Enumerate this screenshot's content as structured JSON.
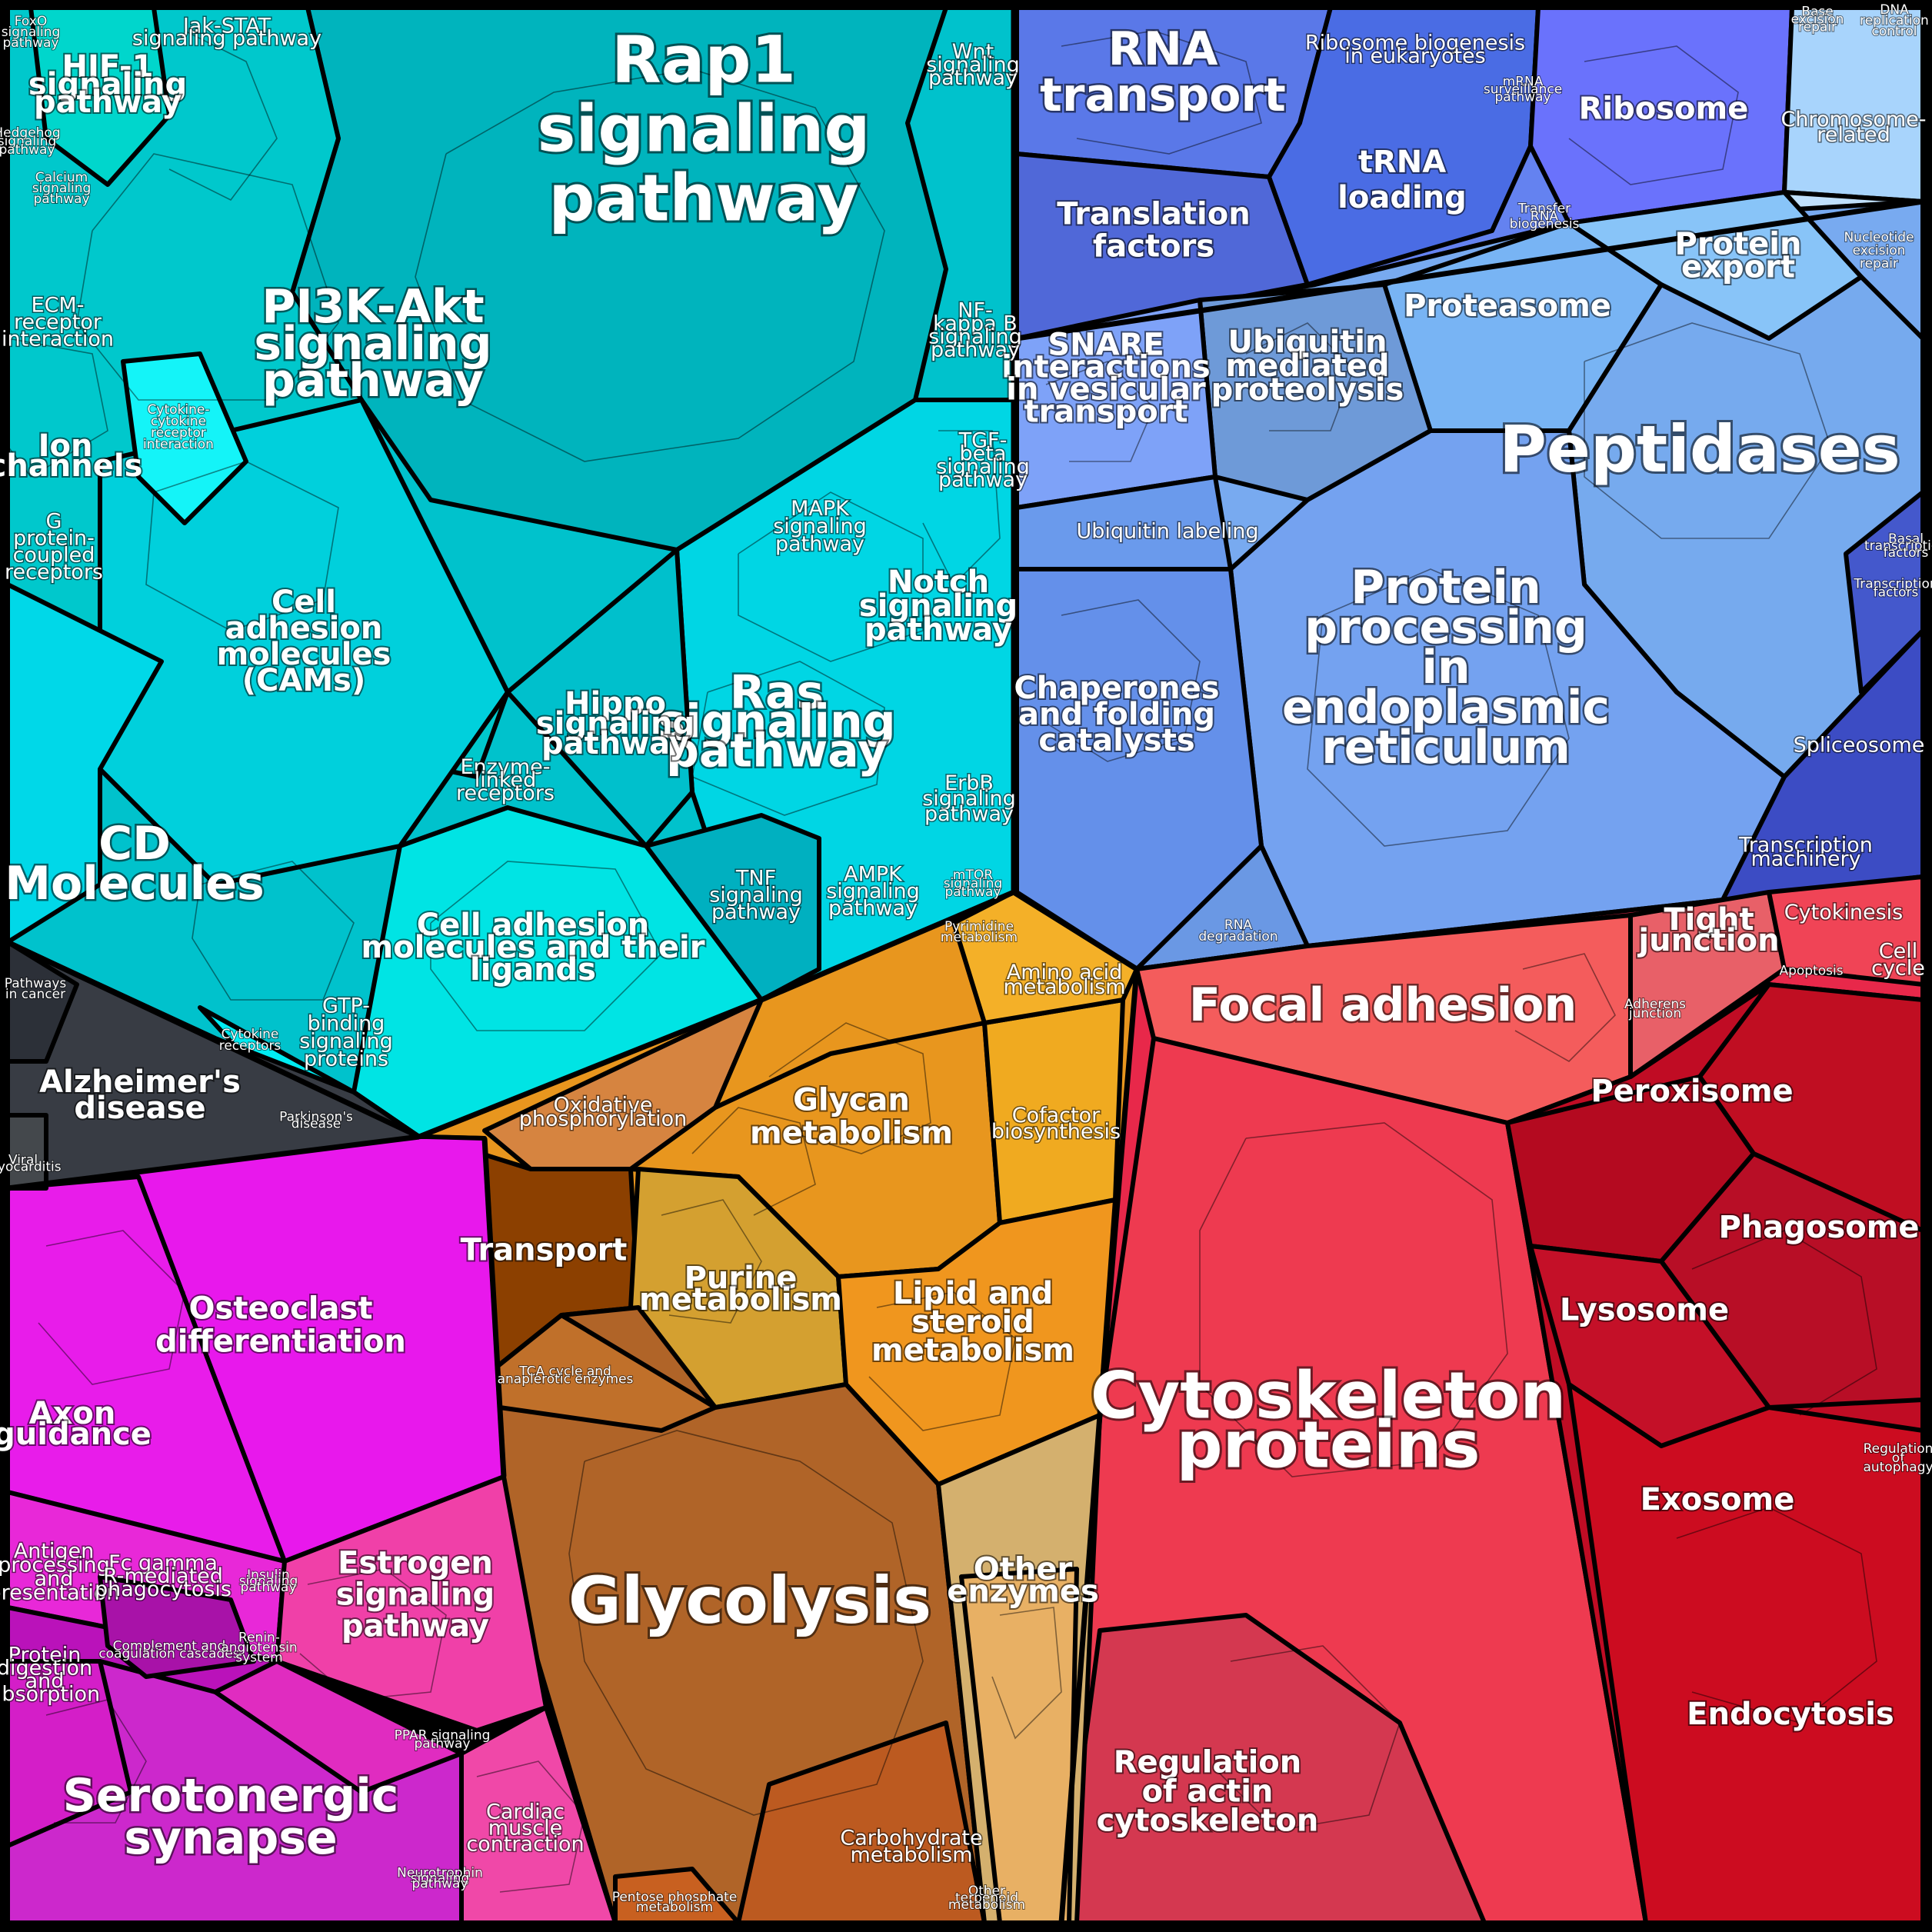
{
  "colors": {
    "signaling": "#00c8d4",
    "signaling_light": "#12e6f0",
    "genetic": "#6a8cf0",
    "genetic_dark": "#4860d8",
    "processing": "#78a8f0",
    "cellular": "#e82848",
    "cellular_dark": "#c00c24",
    "cellular_light": "#f45858",
    "metabolism": "#e8961e",
    "glycolysis": "#b0642a",
    "organismal": "#e818ec",
    "organismal_pink": "#f040a8",
    "disease": "#383c44"
  },
  "labels": {
    "rap1": [
      "Rap1",
      "signaling",
      "pathway"
    ],
    "pi3k": [
      "PI3K-Akt",
      "signaling",
      "pathway"
    ],
    "cd": [
      "CD",
      "Molecules"
    ],
    "cams": [
      "Cell",
      "adhesion",
      "molecules",
      "(CAMs)"
    ],
    "ligands": [
      "Cell adhesion",
      "molecules and their",
      "ligands"
    ],
    "ras": [
      "Ras",
      "signaling",
      "pathway"
    ],
    "notch": [
      "Notch",
      "signaling",
      "pathway"
    ],
    "mapk": [
      "MAPK",
      "signaling",
      "pathway"
    ],
    "hippo": [
      "Hippo",
      "signaling",
      "pathway"
    ],
    "tnf": [
      "TNF",
      "signaling",
      "pathway"
    ],
    "ampk": [
      "AMPK",
      "signaling",
      "pathway"
    ],
    "erbb": [
      "ErbB",
      "signaling",
      "pathway"
    ],
    "enzyme_receptors": [
      "Enzyme-",
      "linked",
      "receptors"
    ],
    "gtp": [
      "GTP-",
      "binding",
      "signaling",
      "proteins"
    ],
    "cytokine_receptors": [
      "Cytokine",
      "receptors"
    ],
    "hif1": [
      "HIF-1",
      "signaling",
      "pathway"
    ],
    "jakstat": [
      "Jak-STAT",
      "signaling pathway"
    ],
    "foxo": [
      "FoxO",
      "signaling",
      "pathway"
    ],
    "wnt": [
      "Wnt",
      "signaling",
      "pathway"
    ],
    "nfkb": [
      "NF-",
      "kappa B",
      "signaling",
      "pathway"
    ],
    "tgf": [
      "TGF-",
      "beta",
      "signaling",
      "pathway"
    ],
    "ecm": [
      "ECM-",
      "receptor",
      "interaction"
    ],
    "ion": [
      "Ion",
      "channels"
    ],
    "gpcr": [
      "G",
      "protein-",
      "coupled",
      "receptors"
    ],
    "cytokine_interaction": [
      "Cytokine-",
      "cytokine",
      "receptor",
      "interaction"
    ],
    "calcium": [
      "Calcium",
      "signaling",
      "pathway"
    ],
    "hedgehog": [
      "Hedgehog",
      "signaling",
      "pathway"
    ],
    "mtor": [
      "mTOR",
      "signaling",
      "pathway"
    ],
    "rna_transport": [
      "RNA",
      "transport"
    ],
    "translation": [
      "Translation",
      "factors"
    ],
    "trna": [
      "tRNA",
      "loading"
    ],
    "ribosome": [
      "Ribosome"
    ],
    "ribosome_bio": [
      "Ribosome biogenesis",
      "in eukaryotes"
    ],
    "mrna_surv": [
      "mRNA",
      "surveillance",
      "pathway"
    ],
    "transfer_rna": [
      "Transfer",
      "RNA",
      "biogenesis"
    ],
    "chromosome": [
      "Chromosome-",
      "related"
    ],
    "nucleotide_excision": [
      "Nucleotide",
      "excision",
      "repair"
    ],
    "base_excision": [
      "Base",
      "excision",
      "repair"
    ],
    "dna_replication": [
      "DNA",
      "replication",
      "control"
    ],
    "protein_export": [
      "Protein",
      "export"
    ],
    "proteasome": [
      "Proteasome"
    ],
    "peptidases": [
      "Peptidases"
    ],
    "snare": [
      "SNARE",
      "interactions",
      "in vesicular",
      "transport"
    ],
    "ubiquitin_proteolysis": [
      "Ubiquitin",
      "mediated",
      "proteolysis"
    ],
    "ubiquitin_labeling": [
      "Ubiquitin labeling"
    ],
    "er": [
      "Protein",
      "processing",
      "in",
      "endoplasmic",
      "reticulum"
    ],
    "chaperones": [
      "Chaperones",
      "and folding",
      "catalysts"
    ],
    "rna_degradation": [
      "RNA",
      "degradation"
    ],
    "spliceosome": [
      "Spliceosome"
    ],
    "transcription_machinery": [
      "Transcription",
      "machinery"
    ],
    "transcription_factors": [
      "Transcription",
      "factors"
    ],
    "basal_tf": [
      "Basal",
      "transcription",
      "factors"
    ],
    "focal": [
      "Focal adhesion"
    ],
    "tight": [
      "Tight",
      "junction"
    ],
    "adherens": [
      "Adherens",
      "junction"
    ],
    "cytokinesis": [
      "Cytokinesis"
    ],
    "apoptosis": [
      "Apoptosis"
    ],
    "cell_cycle": [
      "Cell",
      "cycle"
    ],
    "peroxisome": [
      "Peroxisome"
    ],
    "phagosome": [
      "Phagosome"
    ],
    "lysosome": [
      "Lysosome"
    ],
    "exosome": [
      "Exosome"
    ],
    "autophagy": [
      "Regulation",
      "of",
      "autophagy"
    ],
    "endocytosis": [
      "Endocytosis"
    ],
    "cytoskeleton": [
      "Cytoskeleton",
      "proteins"
    ],
    "actin": [
      "Regulation",
      "of actin",
      "cytoskeleton"
    ],
    "glycan": [
      "Glycan",
      "metabolism"
    ],
    "cofactor": [
      "Cofactor",
      "biosynthesis"
    ],
    "amino": [
      "Amino acid",
      "metabolism"
    ],
    "pyrimidine": [
      "Pyrimidine",
      "metabolism"
    ],
    "oxphos": [
      "Oxidative",
      "phosphorylation"
    ],
    "transport": [
      "Transport"
    ],
    "purine": [
      "Purine",
      "metabolism"
    ],
    "lipid": [
      "Lipid and",
      "steroid",
      "metabolism"
    ],
    "tca": [
      "TCA cycle and",
      "anaplerotic enzymes"
    ],
    "glycolysis": [
      "Glycolysis"
    ],
    "other_enzymes": [
      "Other",
      "enzymes"
    ],
    "carbohydrate": [
      "Carbohydrate",
      "metabolism"
    ],
    "pentose": [
      "Pentose phosphate",
      "metabolism"
    ],
    "other_terpenoids": [
      "Other",
      "terpenoid",
      "metabolism"
    ],
    "osteoclast": [
      "Osteoclast",
      "differentiation"
    ],
    "axon": [
      "Axon",
      "guidance"
    ],
    "antigen": [
      "Antigen",
      "processing",
      "and",
      "presentation"
    ],
    "fcgamma": [
      "Fc gamma",
      "R-mediated",
      "phagocytosis"
    ],
    "complement": [
      "Complement and",
      "coagulation cascades"
    ],
    "estrogen": [
      "Estrogen",
      "signaling",
      "pathway"
    ],
    "insulin": [
      "Insulin",
      "signaling",
      "pathway"
    ],
    "renin": [
      "Renin-",
      "angiotensin",
      "system"
    ],
    "protein_digestion": [
      "Protein",
      "digestion",
      "and",
      "absorption"
    ],
    "serotonergic": [
      "Serotonergic",
      "synapse"
    ],
    "ppar": [
      "PPAR signaling",
      "pathway"
    ],
    "cardiac": [
      "Cardiac",
      "muscle",
      "contraction"
    ],
    "neuro": [
      "Neurotrophin",
      "signaling",
      "pathway"
    ],
    "alzheimer": [
      "Alzheimer's",
      "disease"
    ],
    "pathways_cancer": [
      "Pathways",
      "in cancer"
    ],
    "parkinson": [
      "Parkinson's",
      "disease"
    ],
    "viral": [
      "Viral",
      "myocarditis"
    ]
  }
}
